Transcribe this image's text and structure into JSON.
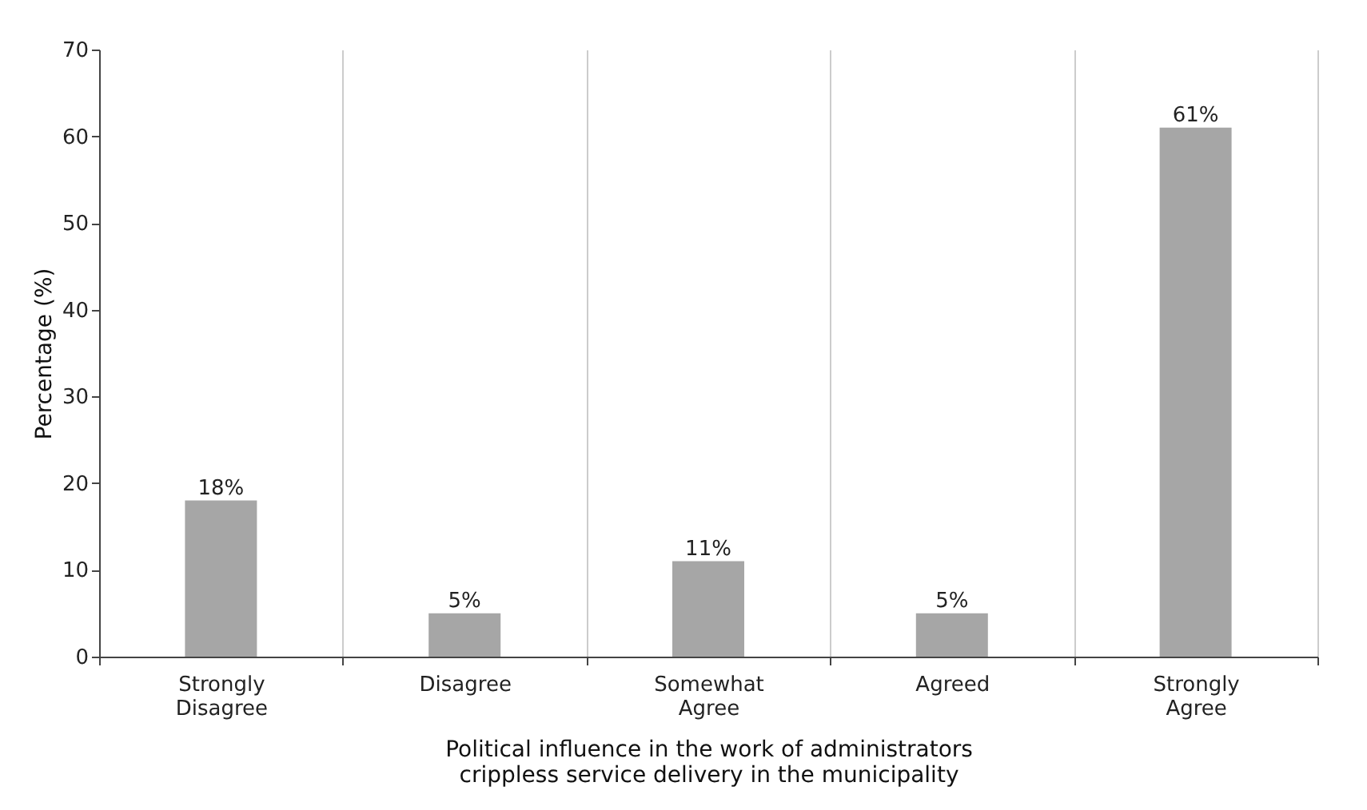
{
  "chart_data": {
    "type": "bar",
    "categories": [
      "Strongly Disagree",
      "Disagree",
      "Somewhat Agree",
      "Agreed",
      "Strongly Agree"
    ],
    "values": [
      18,
      5,
      11,
      5,
      61
    ],
    "value_labels": [
      "18%",
      "5%",
      "11%",
      "5%",
      "61%"
    ],
    "color": "#a6a6a6",
    "ylabel": "Percentage (%)",
    "xlabel": "Political influence in the work of administrators crippless service delivery in the municipality",
    "ylim": [
      0,
      70
    ],
    "yticks": [
      0,
      10,
      20,
      30,
      40,
      50,
      60,
      70
    ],
    "grid": "x"
  }
}
